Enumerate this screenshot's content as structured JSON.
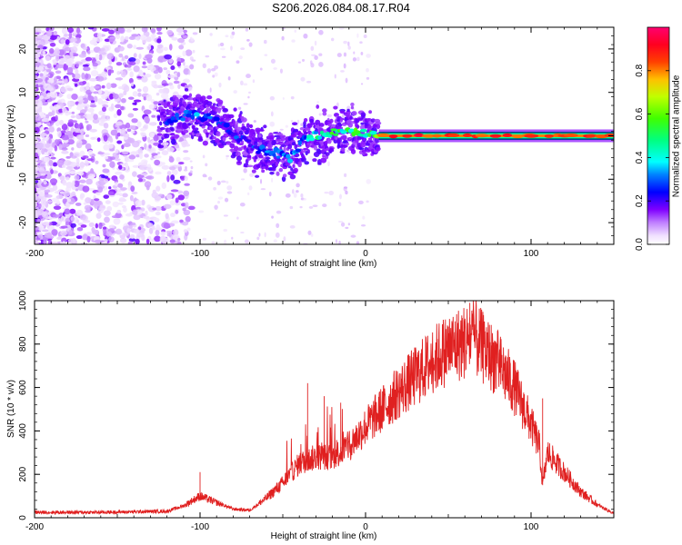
{
  "title": "S206.2026.084.08.17.R04",
  "chart_data": [
    {
      "type": "heatmap",
      "name": "spectrogram",
      "xlabel": "Height of straight line (km)",
      "ylabel": "Frequency (Hz)",
      "xlim": [
        -200,
        150
      ],
      "ylim": [
        -25,
        25
      ],
      "x_ticks": [
        -200,
        -100,
        0,
        100
      ],
      "x_tick_labels": [
        "-200",
        "-100",
        "0",
        "100"
      ],
      "y_ticks": [
        -20,
        -10,
        0,
        10,
        20
      ],
      "y_tick_labels": [
        "-20",
        "-10",
        "0",
        "10",
        "20"
      ],
      "colorbar": {
        "label": "Normalized spectral amplitude",
        "range": [
          0,
          1
        ],
        "ticks": [
          0.0,
          0.2,
          0.4,
          0.6,
          0.8
        ],
        "tick_labels": [
          "0.0",
          "0.2",
          "0.4",
          "0.6",
          "0.8"
        ],
        "colormap": [
          "#f4e6ff",
          "#d4b0ff",
          "#8a2be2",
          "#4b00ff",
          "#0000ff",
          "#00c8ff",
          "#00ff80",
          "#80ff00",
          "#ffff00",
          "#ff8000",
          "#ff0000",
          "#ff0060"
        ]
      },
      "ridge": {
        "x": [
          -125,
          -115,
          -105,
          -95,
          -85,
          -75,
          -65,
          -55,
          -45,
          -35,
          -25,
          -15,
          -5,
          5,
          10,
          30,
          60,
          90,
          120,
          150
        ],
        "y": [
          3,
          4,
          5,
          4,
          2,
          -1,
          -3,
          -4,
          -5,
          0,
          0,
          1,
          1,
          0,
          0,
          0,
          0,
          0,
          0,
          0
        ],
        "amplitude": [
          0.25,
          0.3,
          0.35,
          0.3,
          0.25,
          0.3,
          0.3,
          0.35,
          0.35,
          0.4,
          0.55,
          0.6,
          0.55,
          0.55,
          0.8,
          0.85,
          0.85,
          0.85,
          0.9,
          0.9
        ]
      }
    },
    {
      "type": "line",
      "name": "snr",
      "xlabel": "Height of straight line (km)",
      "ylabel": "SNR (10 * v/v)",
      "xlim": [
        -200,
        150
      ],
      "ylim": [
        0,
        1000
      ],
      "x_ticks": [
        -200,
        -100,
        0,
        100
      ],
      "x_tick_labels": [
        "-200",
        "-100",
        "0",
        "100"
      ],
      "y_ticks": [
        0,
        200,
        400,
        600,
        800,
        1000
      ],
      "y_tick_labels": [
        "0",
        "200",
        "400",
        "600",
        "800",
        "1000"
      ],
      "color": "#e02020",
      "envelope": {
        "x": [
          -200,
          -160,
          -120,
          -110,
          -100,
          -90,
          -80,
          -70,
          -60,
          -50,
          -40,
          -30,
          -20,
          -10,
          0,
          10,
          20,
          30,
          40,
          50,
          60,
          65,
          70,
          80,
          90,
          100,
          105,
          107,
          110,
          120,
          130,
          140,
          150
        ],
        "y": [
          25,
          25,
          30,
          55,
          100,
          70,
          40,
          35,
          90,
          160,
          250,
          280,
          280,
          330,
          420,
          500,
          580,
          650,
          720,
          780,
          810,
          840,
          790,
          710,
          600,
          430,
          330,
          150,
          300,
          210,
          120,
          60,
          20
        ]
      },
      "spikes": [
        {
          "x": -100,
          "y": 210
        },
        {
          "x": -35,
          "y": 620
        },
        {
          "x": -25,
          "y": 560
        },
        {
          "x": -15,
          "y": 530
        },
        {
          "x": 63,
          "y": 990
        },
        {
          "x": 65,
          "y": 960
        },
        {
          "x": 107,
          "y": 550
        }
      ]
    }
  ]
}
